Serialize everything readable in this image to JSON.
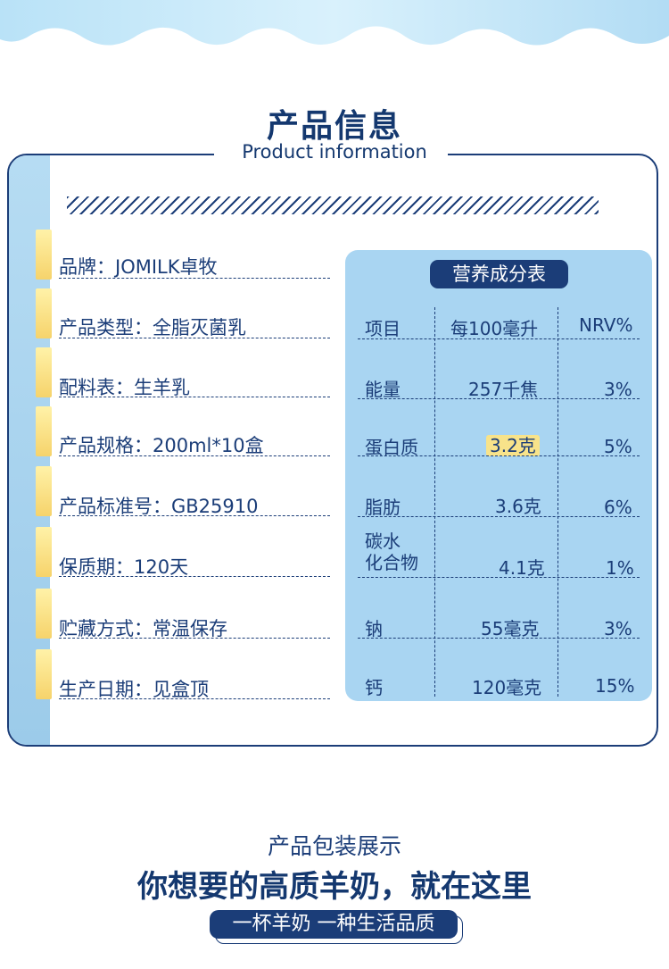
{
  "header": {
    "title_cn": "产品信息",
    "title_en": "Product information"
  },
  "info": [
    {
      "text": "品牌：JOMILK卓牧"
    },
    {
      "text": "产品类型：全脂灭菌乳"
    },
    {
      "text": "配料表：生羊乳"
    },
    {
      "text": "产品规格：200ml*10盒"
    },
    {
      "text": "产品标准号：GB25910"
    },
    {
      "text": "保质期：120天"
    },
    {
      "text": "贮藏方式：常温保存"
    },
    {
      "text": "生产日期：见盒顶"
    }
  ],
  "nutrition": {
    "title": "营养成分表",
    "headers": [
      "项目",
      "每100毫升",
      "NRV%"
    ],
    "rows": [
      {
        "item": "能量",
        "value": "257千焦",
        "nrv": "3%"
      },
      {
        "item": "蛋白质",
        "value": "3.2克",
        "nrv": "5%"
      },
      {
        "item": "脂肪",
        "value": "3.6克",
        "nrv": "6%"
      },
      {
        "item": "碳水化合物",
        "item_l1": "碳水",
        "item_l2": "化合物",
        "value": "4.1克",
        "nrv": "1%"
      },
      {
        "item": "钠",
        "value": "55毫克",
        "nrv": "3%"
      },
      {
        "item": "钙",
        "value": "120毫克",
        "nrv": "15%"
      }
    ]
  },
  "footer": {
    "line1": "产品包装展示",
    "line2": "你想要的高质羊奶，就在这里",
    "tagline": "一杯羊奶 一种生活品质"
  },
  "colors": {
    "navy": "#1b3d78",
    "light_blue": "#a9d5f2",
    "yellow": "#f6d36b"
  }
}
